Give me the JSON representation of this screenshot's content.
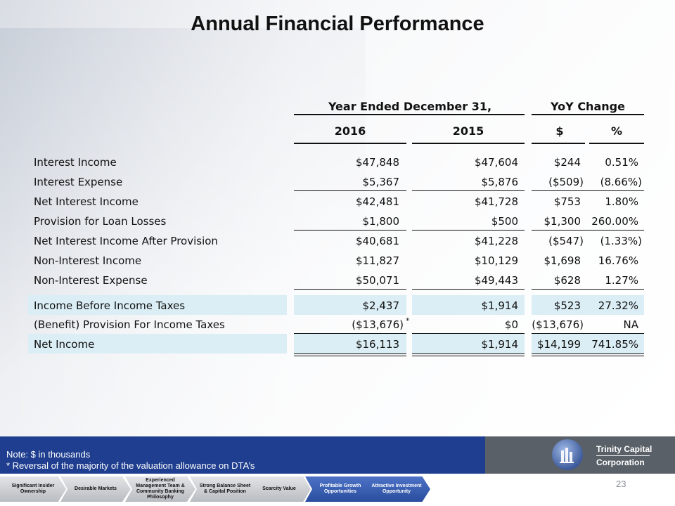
{
  "title": "Annual Financial Performance",
  "headers": {
    "group1": "Year Ended December 31,",
    "group2": "YoY Change",
    "col_2016": "2016",
    "col_2015": "2015",
    "col_dollar": "$",
    "col_pct": "%"
  },
  "rows": [
    {
      "label": "Interest Income",
      "y2016": "$47,848",
      "y2015": "$47,604",
      "chg": "$244",
      "pct": "0.51%"
    },
    {
      "label": "Interest Expense",
      "y2016": "$5,367",
      "y2015": "$5,876",
      "chg": "($509)",
      "pct": "(8.66%)"
    },
    {
      "label": "Net Interest Income",
      "y2016": "$42,481",
      "y2015": "$41,728",
      "chg": "$753",
      "pct": "1.80%"
    },
    {
      "label": "Provision for Loan Losses",
      "y2016": "$1,800",
      "y2015": "$500",
      "chg": "$1,300",
      "pct": "260.00%"
    },
    {
      "label": "Net Interest Income After Provision",
      "y2016": "$40,681",
      "y2015": "$41,228",
      "chg": "($547)",
      "pct": "(1.33%)"
    },
    {
      "label": "Non-Interest Income",
      "y2016": "$11,827",
      "y2015": "$10,129",
      "chg": "$1,698",
      "pct": "16.76%"
    },
    {
      "label": "Non-Interest Expense",
      "y2016": "$50,071",
      "y2015": "$49,443",
      "chg": "$628",
      "pct": "1.27%"
    },
    {
      "label": "Income Before Income Taxes",
      "y2016": "$2,437",
      "y2015": "$1,914",
      "chg": "$523",
      "pct": "27.32%"
    },
    {
      "label": "(Benefit) Provision For Income Taxes",
      "y2016": "($13,676)",
      "y2015": "$0",
      "chg": "($13,676)",
      "pct": "NA"
    },
    {
      "label": "Net Income",
      "y2016": "$16,113",
      "y2015": "$1,914",
      "chg": "$14,199",
      "pct": "741.85%"
    }
  ],
  "asterisk": "*",
  "footer": {
    "note1": "Note: $ in thousands",
    "note2": "* Reversal of the majority of the valuation allowance on DTA’s",
    "company_line1": "Trinity Capital",
    "company_line2": "Corporation",
    "page_number": "23"
  },
  "nav": [
    {
      "label": "Significant Insider Ownership"
    },
    {
      "label": "Desirable Markets"
    },
    {
      "label": "Experienced Management Team & Community Banking Philosophy"
    },
    {
      "label": "Strong Balance Sheet & Capital Position"
    },
    {
      "label": "Scarcity Value"
    },
    {
      "label": "Profitable Growth Opportunities"
    },
    {
      "label": "Attractive Investment Opportunity"
    }
  ],
  "colors": {
    "highlight_row": "#dbeef5",
    "footer_blue": "#1f3e8f",
    "footer_gray": "#5a6068",
    "nav_active": "#2a4d9e"
  },
  "icons": {
    "logo": "trinity-capital-logo-icon"
  }
}
